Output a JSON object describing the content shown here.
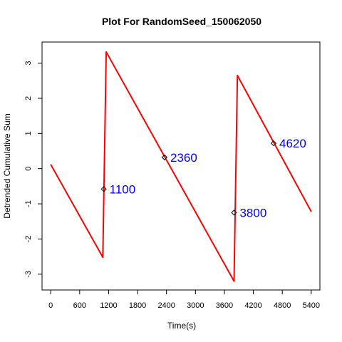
{
  "chart_data": {
    "type": "line",
    "title": "Plot For RandomSeed_150062050",
    "xlabel": "Time(s)",
    "ylabel": "Detrended Cumulative Sum",
    "xlim": [
      -180,
      5580
    ],
    "ylim": [
      -3.45,
      3.6
    ],
    "x_ticks": [
      0,
      600,
      1200,
      1800,
      2400,
      3000,
      3600,
      4200,
      4800,
      5400
    ],
    "y_ticks": [
      -3,
      -2,
      -1,
      0,
      1,
      2,
      3
    ],
    "grid": false,
    "legend": "none",
    "series": [
      {
        "color": "#ff0000",
        "x": [
          0,
          1080,
          1150,
          3800,
          3870,
          5400
        ],
        "y": [
          0.12,
          -2.52,
          3.32,
          -3.2,
          2.65,
          -1.22
        ]
      }
    ],
    "annotations": [
      {
        "x": 1100,
        "y": -0.58,
        "label": "1100",
        "color": "#0000ff"
      },
      {
        "x": 2360,
        "y": 0.32,
        "label": "2360",
        "color": "#0000ff"
      },
      {
        "x": 3800,
        "y": -1.25,
        "label": "3800",
        "color": "#0000ff"
      },
      {
        "x": 4620,
        "y": 0.72,
        "label": "4620",
        "color": "#0000ff"
      }
    ]
  }
}
